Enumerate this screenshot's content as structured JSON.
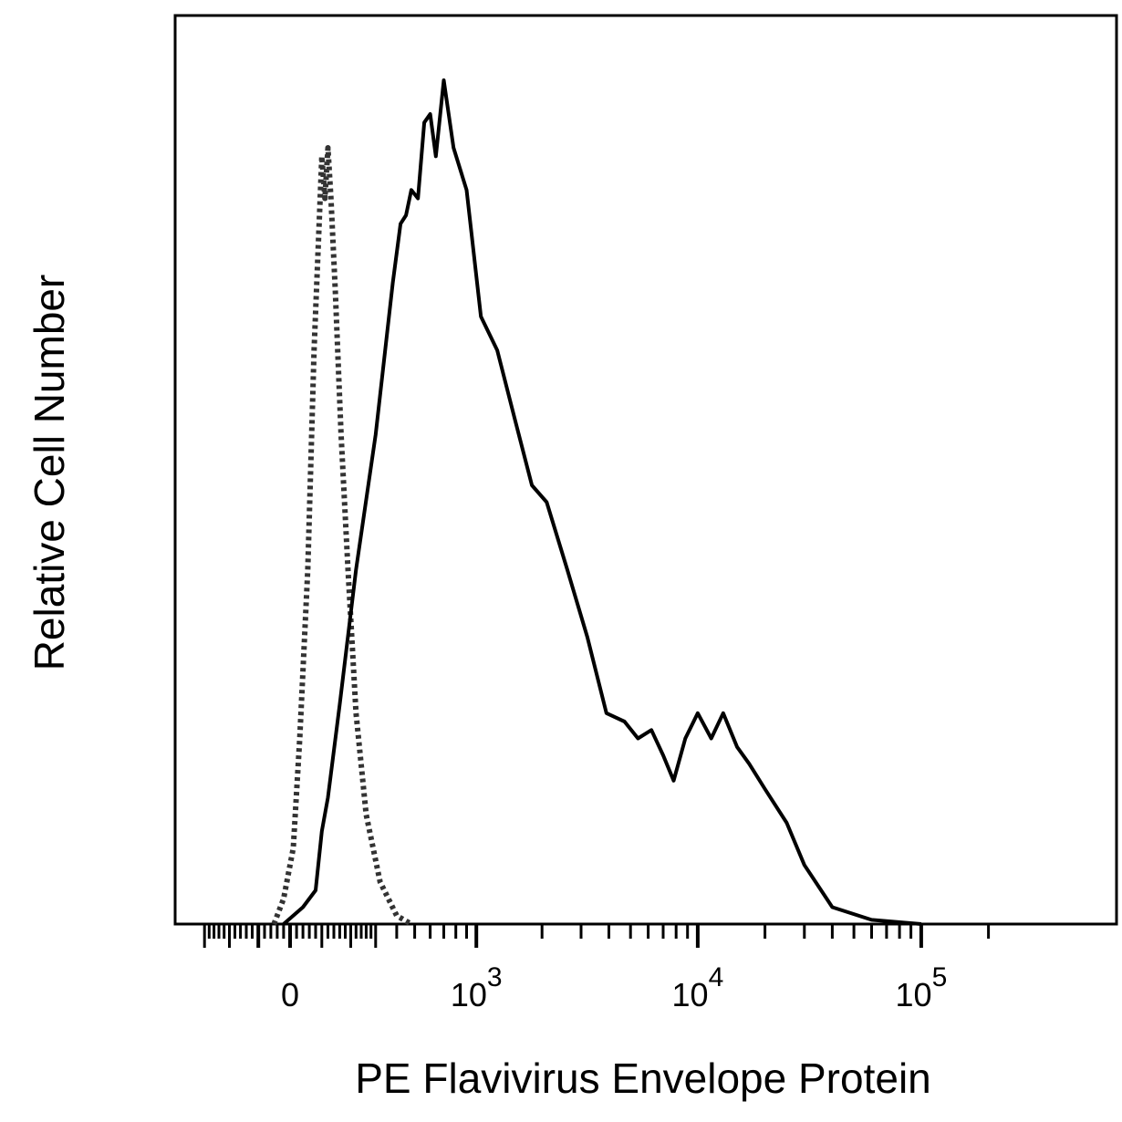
{
  "chart_data": {
    "type": "line",
    "title": "",
    "xlabel": "PE Flavivirus Envelope Protein",
    "ylabel": "Relative Cell Number",
    "x_scale": "biexponential",
    "xlim": [
      -300,
      200000
    ],
    "ylim": [
      0,
      100
    ],
    "grid": false,
    "legend": "none",
    "x_tick_labels": [
      {
        "value": 0,
        "base": "0",
        "exp": ""
      },
      {
        "value": 1000,
        "base": "10",
        "exp": "3"
      },
      {
        "value": 10000,
        "base": "10",
        "exp": "4"
      },
      {
        "value": 100000,
        "base": "10",
        "exp": "5"
      }
    ],
    "series": [
      {
        "style": "dotted",
        "color": "#333333",
        "points": [
          [
            -50,
            0
          ],
          [
            -20,
            3
          ],
          [
            10,
            9
          ],
          [
            30,
            22
          ],
          [
            55,
            42
          ],
          [
            75,
            68
          ],
          [
            90,
            82
          ],
          [
            100,
            91
          ],
          [
            110,
            86
          ],
          [
            120,
            92
          ],
          [
            130,
            86
          ],
          [
            145,
            75
          ],
          [
            165,
            58
          ],
          [
            190,
            42
          ],
          [
            220,
            25
          ],
          [
            260,
            13
          ],
          [
            320,
            5
          ],
          [
            400,
            1
          ],
          [
            480,
            0
          ]
        ]
      },
      {
        "style": "solid",
        "color": "#000000",
        "points": [
          [
            -20,
            0
          ],
          [
            10,
            1
          ],
          [
            40,
            2
          ],
          [
            80,
            4
          ],
          [
            100,
            11
          ],
          [
            120,
            15
          ],
          [
            160,
            26
          ],
          [
            220,
            42
          ],
          [
            300,
            58
          ],
          [
            380,
            76
          ],
          [
            420,
            83
          ],
          [
            450,
            84
          ],
          [
            480,
            87
          ],
          [
            520,
            86
          ],
          [
            560,
            95
          ],
          [
            600,
            96
          ],
          [
            640,
            91
          ],
          [
            700,
            100
          ],
          [
            780,
            92
          ],
          [
            900,
            87
          ],
          [
            1050,
            72
          ],
          [
            1250,
            68
          ],
          [
            1500,
            60
          ],
          [
            1800,
            52
          ],
          [
            2100,
            50
          ],
          [
            2600,
            42
          ],
          [
            3200,
            34
          ],
          [
            3900,
            25
          ],
          [
            4700,
            24
          ],
          [
            5400,
            22
          ],
          [
            6200,
            23
          ],
          [
            7000,
            20
          ],
          [
            7800,
            17
          ],
          [
            8800,
            22
          ],
          [
            10000,
            25
          ],
          [
            11500,
            22
          ],
          [
            13000,
            25
          ],
          [
            15000,
            21
          ],
          [
            17000,
            19
          ],
          [
            20000,
            16
          ],
          [
            25000,
            12
          ],
          [
            30000,
            7
          ],
          [
            40000,
            2
          ],
          [
            60000,
            0.5
          ],
          [
            100000,
            0
          ]
        ]
      }
    ]
  }
}
